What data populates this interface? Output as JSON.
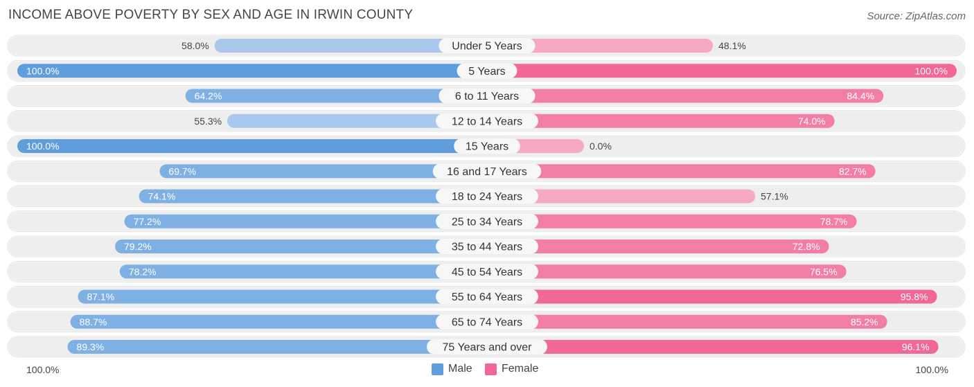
{
  "title": "INCOME ABOVE POVERTY BY SEX AND AGE IN IRWIN COUNTY",
  "source": "Source: ZipAtlas.com",
  "colors": {
    "male_strong": "#5f9ddc",
    "male_light": "#a9c8ec",
    "female_strong": "#f06893",
    "female_light": "#f7a8c3",
    "row_bg": "#eeeeee"
  },
  "legend": {
    "male_label": "Male",
    "female_label": "Female"
  },
  "axis": {
    "left_label": "100.0%",
    "right_label": "100.0%"
  },
  "chart_data": {
    "type": "bar",
    "orientation": "horizontal-diverging",
    "categories": [
      "Under 5 Years",
      "5 Years",
      "6 to 11 Years",
      "12 to 14 Years",
      "15 Years",
      "16 and 17 Years",
      "18 to 24 Years",
      "25 to 34 Years",
      "35 to 44 Years",
      "45 to 54 Years",
      "55 to 64 Years",
      "65 to 74 Years",
      "75 Years and over"
    ],
    "series": [
      {
        "name": "Male",
        "values": [
          58.0,
          100.0,
          64.2,
          55.3,
          100.0,
          69.7,
          74.1,
          77.2,
          79.2,
          78.2,
          87.1,
          88.7,
          89.3
        ]
      },
      {
        "name": "Female",
        "values": [
          48.1,
          100.0,
          84.4,
          74.0,
          0.0,
          82.7,
          57.1,
          78.7,
          72.8,
          76.5,
          95.8,
          85.2,
          96.1
        ]
      }
    ],
    "value_labels": {
      "male": [
        "58.0%",
        "100.0%",
        "64.2%",
        "55.3%",
        "100.0%",
        "69.7%",
        "74.1%",
        "77.2%",
        "79.2%",
        "78.2%",
        "87.1%",
        "88.7%",
        "89.3%"
      ],
      "female": [
        "48.1%",
        "100.0%",
        "84.4%",
        "74.0%",
        "0.0%",
        "82.7%",
        "57.1%",
        "78.7%",
        "72.8%",
        "76.5%",
        "95.8%",
        "85.2%",
        "96.1%"
      ]
    },
    "xlim": [
      -100,
      100
    ],
    "title": "INCOME ABOVE POVERTY BY SEX AND AGE IN IRWIN COUNTY"
  }
}
